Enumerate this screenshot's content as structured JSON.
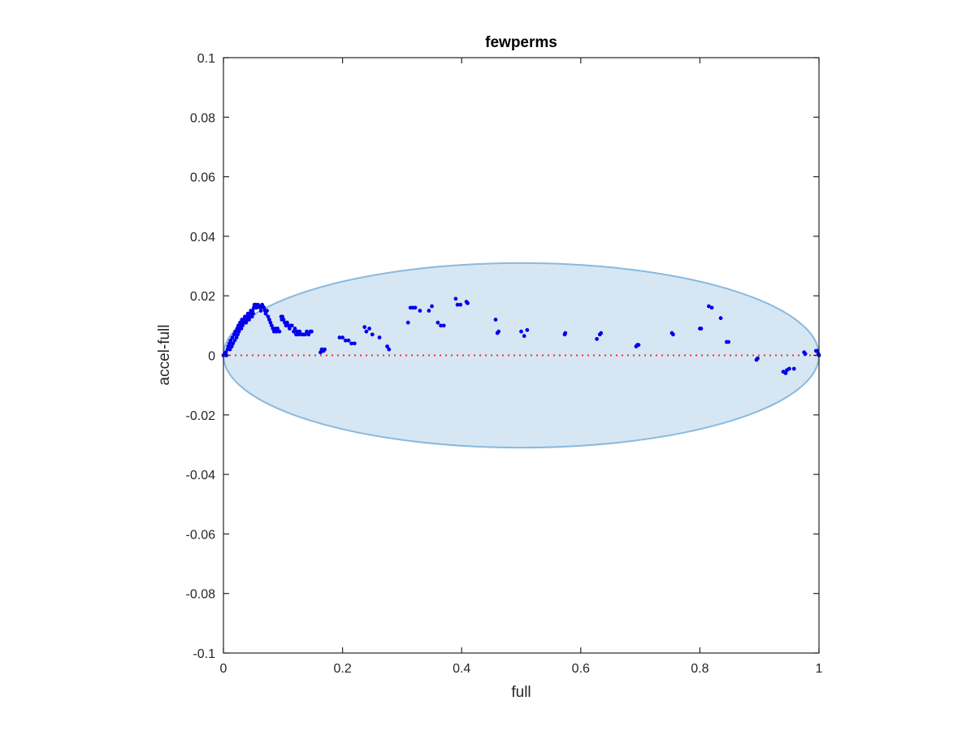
{
  "chart_data": {
    "type": "scatter",
    "title": "fewperms",
    "xlabel": "full",
    "ylabel": "accel-full",
    "xlim": [
      0,
      1
    ],
    "ylim": [
      -0.1,
      0.1
    ],
    "xticks": [
      0,
      0.2,
      0.4,
      0.6,
      0.8,
      1
    ],
    "xtick_labels": [
      "0",
      "0.2",
      "0.4",
      "0.6",
      "0.8",
      "1"
    ],
    "yticks": [
      -0.1,
      -0.08,
      -0.06,
      -0.04,
      -0.02,
      0,
      0.02,
      0.04,
      0.06,
      0.08,
      0.1
    ],
    "ytick_labels": [
      "-0.1",
      "-0.08",
      "-0.06",
      "-0.04",
      "-0.02",
      "0",
      "0.02",
      "0.04",
      "0.06",
      "0.08",
      "0.1"
    ],
    "grid": false,
    "colors": {
      "points": "#0000ee",
      "ellipse_fill": "#d6e7f3",
      "ellipse_stroke": "#8ab9de",
      "reference_line": "#ff2a2a",
      "axes": "#262626"
    },
    "ellipse": {
      "center": [
        0.5,
        0.0
      ],
      "x_radius": 0.5,
      "y_radius": 0.031
    },
    "reference_line": {
      "y": 0,
      "style": "dotted"
    },
    "series": [
      {
        "points": [
          [
            0.0,
            0.0
          ],
          [
            0.002,
            0.0005
          ],
          [
            0.004,
            0.001
          ],
          [
            0.005,
            0.0
          ],
          [
            0.007,
            0.002
          ],
          [
            0.008,
            0.003
          ],
          [
            0.01,
            0.004
          ],
          [
            0.011,
            0.002
          ],
          [
            0.012,
            0.005
          ],
          [
            0.014,
            0.003
          ],
          [
            0.015,
            0.006
          ],
          [
            0.016,
            0.004
          ],
          [
            0.018,
            0.007
          ],
          [
            0.019,
            0.005
          ],
          [
            0.02,
            0.008
          ],
          [
            0.022,
            0.006
          ],
          [
            0.023,
            0.009
          ],
          [
            0.024,
            0.007
          ],
          [
            0.025,
            0.01
          ],
          [
            0.026,
            0.008
          ],
          [
            0.027,
            0.009
          ],
          [
            0.028,
            0.011
          ],
          [
            0.029,
            0.01
          ],
          [
            0.03,
            0.009
          ],
          [
            0.031,
            0.012
          ],
          [
            0.032,
            0.01
          ],
          [
            0.033,
            0.011
          ],
          [
            0.034,
            0.012
          ],
          [
            0.035,
            0.011
          ],
          [
            0.036,
            0.013
          ],
          [
            0.037,
            0.012
          ],
          [
            0.038,
            0.011
          ],
          [
            0.039,
            0.013
          ],
          [
            0.04,
            0.012
          ],
          [
            0.041,
            0.014
          ],
          [
            0.042,
            0.013
          ],
          [
            0.043,
            0.012
          ],
          [
            0.044,
            0.014
          ],
          [
            0.045,
            0.013
          ],
          [
            0.046,
            0.015
          ],
          [
            0.047,
            0.014
          ],
          [
            0.048,
            0.013
          ],
          [
            0.049,
            0.015
          ],
          [
            0.05,
            0.014
          ],
          [
            0.051,
            0.016
          ],
          [
            0.052,
            0.017
          ],
          [
            0.053,
            0.016
          ],
          [
            0.054,
            0.017
          ],
          [
            0.055,
            0.0165
          ],
          [
            0.056,
            0.016
          ],
          [
            0.058,
            0.017
          ],
          [
            0.06,
            0.0165
          ],
          [
            0.062,
            0.016
          ],
          [
            0.063,
            0.015
          ],
          [
            0.065,
            0.017
          ],
          [
            0.066,
            0.0165
          ],
          [
            0.068,
            0.016
          ],
          [
            0.07,
            0.015
          ],
          [
            0.071,
            0.014
          ],
          [
            0.073,
            0.015
          ],
          [
            0.075,
            0.013
          ],
          [
            0.077,
            0.012
          ],
          [
            0.079,
            0.011
          ],
          [
            0.081,
            0.01
          ],
          [
            0.083,
            0.009
          ],
          [
            0.085,
            0.008
          ],
          [
            0.087,
            0.009
          ],
          [
            0.089,
            0.008
          ],
          [
            0.091,
            0.009
          ],
          [
            0.094,
            0.008
          ],
          [
            0.097,
            0.013
          ],
          [
            0.098,
            0.012
          ],
          [
            0.099,
            0.013
          ],
          [
            0.101,
            0.012
          ],
          [
            0.103,
            0.011
          ],
          [
            0.105,
            0.01
          ],
          [
            0.107,
            0.011
          ],
          [
            0.109,
            0.01
          ],
          [
            0.111,
            0.009
          ],
          [
            0.113,
            0.01
          ],
          [
            0.115,
            0.01
          ],
          [
            0.118,
            0.008
          ],
          [
            0.12,
            0.009
          ],
          [
            0.122,
            0.007
          ],
          [
            0.124,
            0.008
          ],
          [
            0.126,
            0.007
          ],
          [
            0.128,
            0.008
          ],
          [
            0.131,
            0.007
          ],
          [
            0.134,
            0.007
          ],
          [
            0.137,
            0.007
          ],
          [
            0.14,
            0.008
          ],
          [
            0.143,
            0.007
          ],
          [
            0.146,
            0.008
          ],
          [
            0.148,
            0.008
          ],
          [
            0.163,
            0.001
          ],
          [
            0.165,
            0.002
          ],
          [
            0.168,
            0.0015
          ],
          [
            0.17,
            0.002
          ],
          [
            0.195,
            0.006
          ],
          [
            0.2,
            0.006
          ],
          [
            0.205,
            0.005
          ],
          [
            0.21,
            0.005
          ],
          [
            0.215,
            0.004
          ],
          [
            0.22,
            0.004
          ],
          [
            0.237,
            0.0095
          ],
          [
            0.24,
            0.008
          ],
          [
            0.245,
            0.009
          ],
          [
            0.25,
            0.007
          ],
          [
            0.262,
            0.006
          ],
          [
            0.275,
            0.003
          ],
          [
            0.278,
            0.002
          ],
          [
            0.31,
            0.011
          ],
          [
            0.314,
            0.016
          ],
          [
            0.318,
            0.016
          ],
          [
            0.322,
            0.016
          ],
          [
            0.33,
            0.015
          ],
          [
            0.345,
            0.015
          ],
          [
            0.35,
            0.0165
          ],
          [
            0.36,
            0.011
          ],
          [
            0.365,
            0.01
          ],
          [
            0.37,
            0.01
          ],
          [
            0.39,
            0.019
          ],
          [
            0.393,
            0.017
          ],
          [
            0.398,
            0.017
          ],
          [
            0.408,
            0.018
          ],
          [
            0.41,
            0.0175
          ],
          [
            0.457,
            0.012
          ],
          [
            0.46,
            0.0075
          ],
          [
            0.462,
            0.008
          ],
          [
            0.5,
            0.008
          ],
          [
            0.505,
            0.0065
          ],
          [
            0.51,
            0.0085
          ],
          [
            0.573,
            0.007
          ],
          [
            0.574,
            0.0075
          ],
          [
            0.627,
            0.0055
          ],
          [
            0.632,
            0.007
          ],
          [
            0.634,
            0.0075
          ],
          [
            0.693,
            0.003
          ],
          [
            0.695,
            0.0035
          ],
          [
            0.697,
            0.0035
          ],
          [
            0.753,
            0.0075
          ],
          [
            0.755,
            0.007
          ],
          [
            0.8,
            0.009
          ],
          [
            0.802,
            0.009
          ],
          [
            0.815,
            0.0165
          ],
          [
            0.82,
            0.016
          ],
          [
            0.835,
            0.0125
          ],
          [
            0.845,
            0.0045
          ],
          [
            0.848,
            0.0045
          ],
          [
            0.895,
            -0.0015
          ],
          [
            0.897,
            -0.001
          ],
          [
            0.94,
            -0.0055
          ],
          [
            0.944,
            -0.006
          ],
          [
            0.946,
            -0.005
          ],
          [
            0.95,
            -0.0045
          ],
          [
            0.958,
            -0.0045
          ],
          [
            0.975,
            0.001
          ],
          [
            0.977,
            0.0005
          ],
          [
            0.995,
            0.0015
          ],
          [
            0.997,
            0.0015
          ],
          [
            0.999,
            0.0005
          ],
          [
            1.0,
            0.0
          ]
        ]
      }
    ]
  }
}
